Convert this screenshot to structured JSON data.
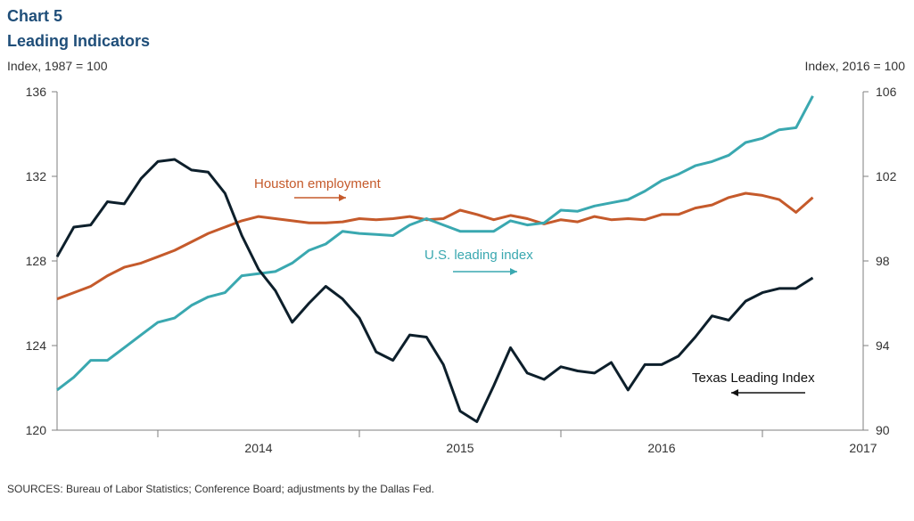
{
  "chart_data": {
    "type": "line",
    "title": "Chart 5",
    "subtitle": "Leading Indicators",
    "left_axis_label": "Index, 1987 = 100",
    "right_axis_label": "Index, 2016 = 100",
    "left_ylim": [
      120,
      136
    ],
    "left_yticks": [
      120,
      124,
      128,
      132,
      136
    ],
    "right_ylim": [
      90,
      106
    ],
    "right_yticks": [
      90,
      94,
      98,
      102,
      106
    ],
    "xlim": [
      "2013-07",
      "2017-07"
    ],
    "year_labels": [
      "2014",
      "2015",
      "2016",
      "2017"
    ],
    "grid": false,
    "source": "SOURCES:  Bureau of Labor Statistics; Conference Board; adjustments by the Dallas Fed.",
    "colors": {
      "texas": "#0d1f2b",
      "houston": "#c55a2b",
      "us": "#3aa8b0"
    },
    "series": [
      {
        "name": "Texas Leading Index",
        "axis": "left",
        "start": "2013-07",
        "values": [
          128.2,
          129.6,
          129.7,
          130.8,
          130.7,
          131.9,
          132.7,
          132.8,
          132.3,
          132.2,
          131.2,
          129.2,
          127.6,
          126.6,
          125.1,
          126.0,
          126.8,
          126.2,
          125.3,
          123.7,
          123.3,
          124.5,
          124.4,
          123.1,
          120.9,
          120.4,
          122.1,
          123.9,
          122.7,
          122.4,
          123.0,
          122.8,
          122.7,
          123.2,
          121.9,
          123.1,
          123.1,
          123.5,
          124.4,
          125.4,
          125.2,
          126.1,
          126.5,
          126.7,
          126.7,
          127.2
        ]
      },
      {
        "name": "Houston employment",
        "axis": "left",
        "start": "2013-07",
        "values": [
          126.2,
          126.5,
          126.8,
          127.3,
          127.7,
          127.9,
          128.2,
          128.5,
          128.9,
          129.3,
          129.6,
          129.9,
          130.1,
          130.0,
          129.9,
          129.8,
          129.8,
          129.85,
          130.0,
          129.95,
          130.0,
          130.1,
          129.95,
          130.0,
          130.4,
          130.2,
          129.95,
          130.15,
          130.0,
          129.75,
          129.95,
          129.85,
          130.1,
          129.95,
          130.0,
          129.95,
          130.2,
          130.2,
          130.5,
          130.65,
          131.0,
          131.2,
          131.1,
          130.9,
          130.3,
          131.0
        ]
      },
      {
        "name": "U.S. leading index",
        "axis": "right",
        "start": "2013-07",
        "values": [
          91.9,
          92.5,
          93.3,
          93.3,
          93.9,
          94.5,
          95.1,
          95.3,
          95.9,
          96.3,
          96.5,
          97.3,
          97.4,
          97.5,
          97.9,
          98.5,
          98.8,
          99.4,
          99.3,
          99.25,
          99.2,
          99.7,
          100.0,
          99.7,
          99.4,
          99.4,
          99.4,
          99.9,
          99.7,
          99.8,
          100.4,
          100.35,
          100.6,
          100.75,
          100.9,
          101.3,
          101.8,
          102.1,
          102.5,
          102.7,
          103.0,
          103.6,
          103.8,
          104.2,
          104.3,
          105.8
        ]
      }
    ],
    "annotations": {
      "houston": "Houston  employment",
      "us": "U.S.  leading  index",
      "texas": "Texas  Leading  Index"
    }
  }
}
